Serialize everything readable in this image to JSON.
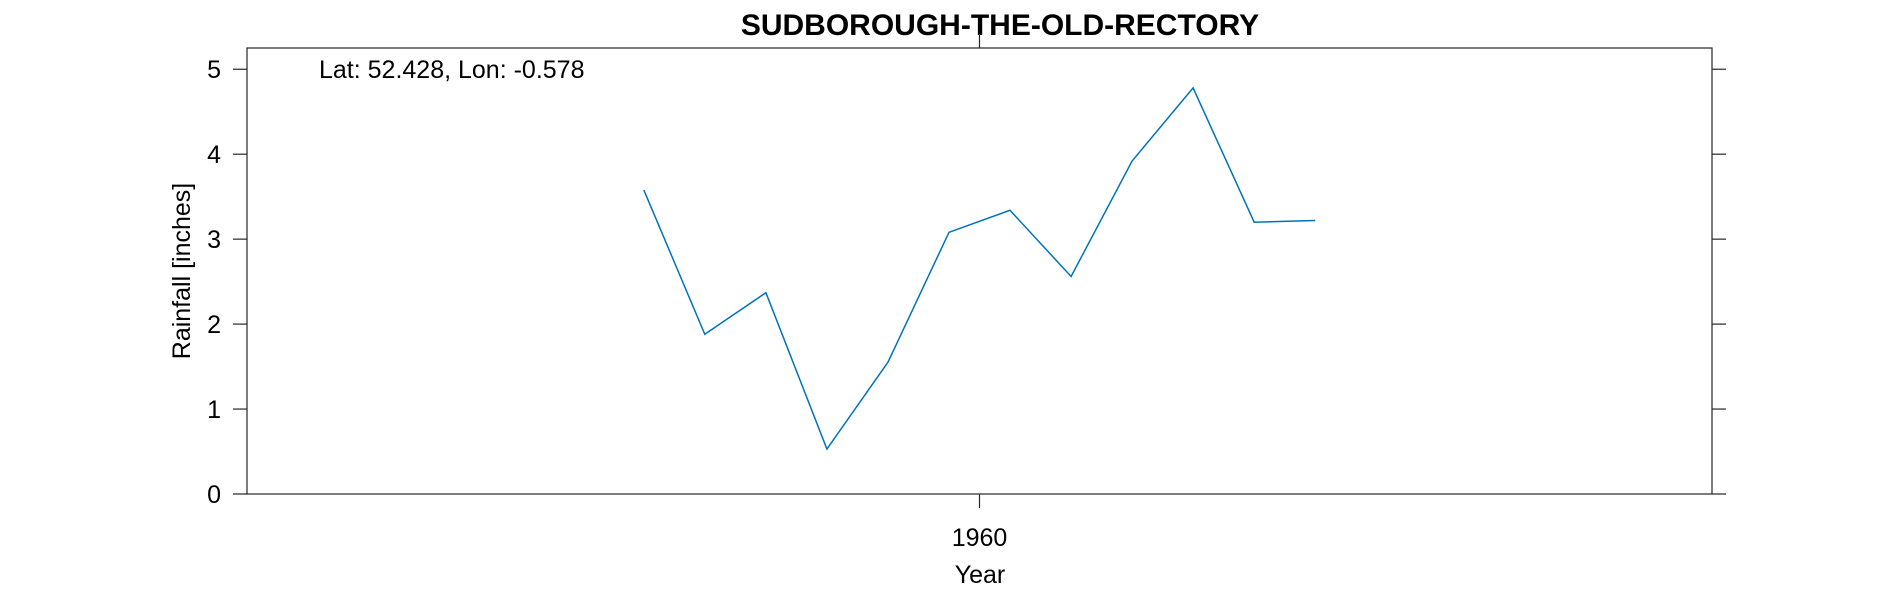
{
  "chart_data": {
    "type": "line",
    "title": "SUDBOROUGH-THE-OLD-RECTORY",
    "annotation": "Lat: 52.428, Lon: -0.578",
    "xlabel": "Year",
    "ylabel": "Rainfall [inches]",
    "xlim": [
      1948,
      1972
    ],
    "ylim": [
      0,
      5.25
    ],
    "grid": false,
    "x_ticks": [
      {
        "value": 1960,
        "label": "1960"
      }
    ],
    "y_ticks": [
      {
        "value": 0,
        "label": "0"
      },
      {
        "value": 1,
        "label": "1"
      },
      {
        "value": 2,
        "label": "2"
      },
      {
        "value": 3,
        "label": "3"
      },
      {
        "value": 4,
        "label": "4"
      },
      {
        "value": 5,
        "label": "5"
      }
    ],
    "series": [
      {
        "color": "#0072BD",
        "x": [
          1954.5,
          1955.5,
          1956.5,
          1957.5,
          1958.5,
          1959.5,
          1960.5,
          1961.5,
          1962.5,
          1963.5,
          1964.5,
          1965.5
        ],
        "y": [
          3.58,
          1.88,
          2.37,
          0.53,
          1.55,
          3.08,
          3.34,
          2.56,
          3.92,
          4.78,
          3.2,
          3.22
        ]
      }
    ]
  }
}
